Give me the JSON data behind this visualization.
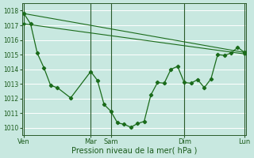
{
  "bg_color": "#c8e8e0",
  "plot_bg": "#c8e8e0",
  "grid_color": "#ffffff",
  "line_color": "#1a6b1a",
  "xlabel": "Pression niveau de la mer( hPa )",
  "ylim": [
    1009.5,
    1018.5
  ],
  "yticks": [
    1010,
    1011,
    1012,
    1013,
    1014,
    1015,
    1016,
    1017,
    1018
  ],
  "xtick_labels": [
    "Ven",
    "Mar",
    "Sam",
    "Dim",
    "Lun"
  ],
  "xtick_positions": [
    0,
    10,
    13,
    24,
    33
  ],
  "vlines_dark": [
    0,
    10,
    13,
    24,
    33
  ],
  "total_x": 33,
  "series_main": {
    "x": [
      0,
      1,
      2,
      3,
      4,
      5,
      7,
      10,
      11,
      12,
      13,
      14,
      15,
      16,
      17,
      18,
      19,
      20,
      21,
      22,
      23,
      24,
      25,
      26,
      27,
      28,
      29,
      30,
      31,
      32,
      33
    ],
    "y": [
      1017.8,
      1017.1,
      1015.1,
      1014.1,
      1012.9,
      1012.75,
      1012.05,
      1013.85,
      1013.25,
      1011.6,
      1011.15,
      1010.35,
      1010.25,
      1010.05,
      1010.3,
      1010.45,
      1012.25,
      1013.1,
      1013.05,
      1014.0,
      1014.2,
      1013.1,
      1013.05,
      1013.3,
      1012.75,
      1013.35,
      1015.0,
      1014.95,
      1015.1,
      1015.5,
      1015.15
    ]
  },
  "series_hi": {
    "x": [
      0,
      33
    ],
    "y": [
      1017.8,
      1015.15
    ]
  },
  "series_lo": {
    "x": [
      0,
      33
    ],
    "y": [
      1017.1,
      1015.05
    ]
  }
}
